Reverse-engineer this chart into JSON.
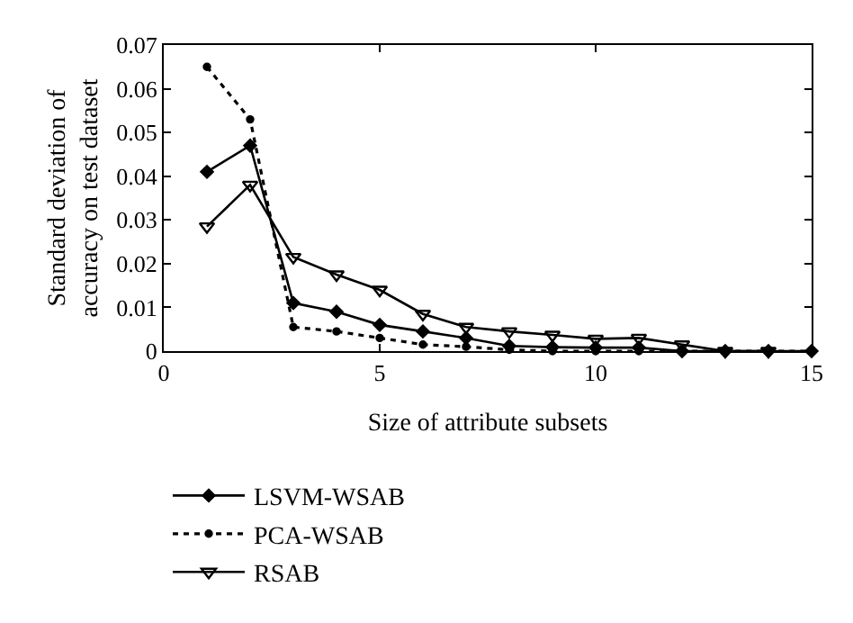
{
  "chart_data": {
    "type": "line",
    "xlabel": "Size of attribute subsets",
    "ylabel": "Standard deviation of\naccuracy on test dataset",
    "x": [
      1,
      2,
      3,
      4,
      5,
      6,
      7,
      8,
      9,
      10,
      11,
      12,
      13,
      14,
      15
    ],
    "series": [
      {
        "name": "LSVM-WSAB",
        "color": "#000000",
        "marker": "diamond",
        "line_style": "solid",
        "values": [
          0.041,
          0.047,
          0.011,
          0.009,
          0.006,
          0.0045,
          0.003,
          0.0012,
          0.0009,
          0.0008,
          0.0008,
          0,
          0,
          0,
          0
        ]
      },
      {
        "name": "PCA-WSAB",
        "color": "#000000",
        "marker": "circle",
        "line_style": "dotted",
        "values": [
          0.065,
          0.053,
          0.0055,
          0.0045,
          0.003,
          0.0015,
          0.001,
          0.0003,
          0,
          0,
          0,
          0,
          0,
          0,
          0
        ]
      },
      {
        "name": "RSAB",
        "color": "#000000",
        "marker": "triangle",
        "line_style": "solid",
        "values": [
          0.0285,
          0.038,
          0.0215,
          0.0175,
          0.014,
          0.0085,
          0.0055,
          0.0045,
          0.0037,
          0.0028,
          0.003,
          0.0015,
          0,
          0,
          null
        ]
      }
    ],
    "xlim": [
      0,
      15
    ],
    "xticks": [
      0,
      5,
      10,
      15
    ],
    "ylim": [
      0,
      0.07
    ],
    "yticks": [
      0,
      0.01,
      0.02,
      0.03,
      0.04,
      0.05,
      0.06,
      0.07
    ],
    "legend": "bottom left"
  }
}
